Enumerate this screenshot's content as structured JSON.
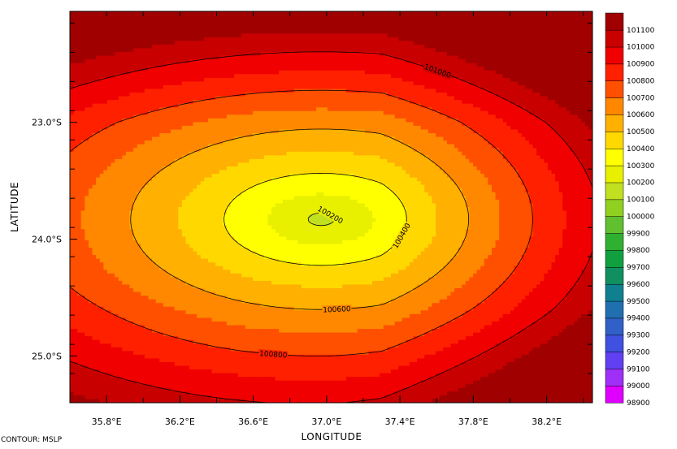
{
  "chart_data": {
    "type": "heatmap",
    "subtype": "filled-contour",
    "variable": "MSLP",
    "footnote": "CONTOUR: MSLP",
    "xlabel": "LONGITUDE",
    "ylabel": "LATITUDE",
    "xlim": [
      35.6,
      38.45
    ],
    "ylim": [
      -25.4,
      -22.05
    ],
    "x_ticks": [
      {
        "value": 35.8,
        "label": "35.8°E"
      },
      {
        "value": 36.2,
        "label": "36.2°E"
      },
      {
        "value": 36.6,
        "label": "36.6°E"
      },
      {
        "value": 37.0,
        "label": "37.0°E"
      },
      {
        "value": 37.4,
        "label": "37.4°E"
      },
      {
        "value": 37.8,
        "label": "37.8°E"
      },
      {
        "value": 38.2,
        "label": "38.2°E"
      }
    ],
    "y_ticks": [
      {
        "value": -23.0,
        "label": "23.0°S"
      },
      {
        "value": -24.0,
        "label": "24.0°S"
      },
      {
        "value": -25.0,
        "label": "25.0°S"
      }
    ],
    "colorbar": {
      "levels": [
        98900,
        99000,
        99100,
        99200,
        99300,
        99400,
        99500,
        99600,
        99700,
        99800,
        99900,
        100000,
        100100,
        100200,
        100300,
        100400,
        100500,
        100600,
        100700,
        100800,
        100900,
        101000,
        101100
      ],
      "labels": [
        "98900",
        "99000",
        "99100",
        "99200",
        "99300",
        "99400",
        "99500",
        "99600",
        "99700",
        "99800",
        "99900",
        "100000",
        "100100",
        "100200",
        "100300",
        "100400",
        "100500",
        "100600",
        "100700",
        "100800",
        "100900",
        "101000",
        "101100"
      ],
      "colors": [
        "#e000ff",
        "#a030f8",
        "#6040f0",
        "#4050e0",
        "#3060c8",
        "#2070b0",
        "#108090",
        "#109060",
        "#10a040",
        "#30b030",
        "#60c030",
        "#90d020",
        "#c0e020",
        "#e8f000",
        "#ffff00",
        "#ffd800",
        "#ffb000",
        "#ff8800",
        "#ff5000",
        "#ff2000",
        "#f00000",
        "#c80000",
        "#a00000"
      ]
    },
    "contour_lines": [
      {
        "level": 100200,
        "label": "100200"
      },
      {
        "level": 100400,
        "label": "100400"
      },
      {
        "level": 100600,
        "label": "100600"
      },
      {
        "level": 100800,
        "label": "100800"
      },
      {
        "level": 101000,
        "label": "101000"
      }
    ],
    "field": {
      "center_lon": 36.97,
      "center_lat": -23.83,
      "center_value": 100160
    },
    "grid": false,
    "legend_placement": "right"
  }
}
